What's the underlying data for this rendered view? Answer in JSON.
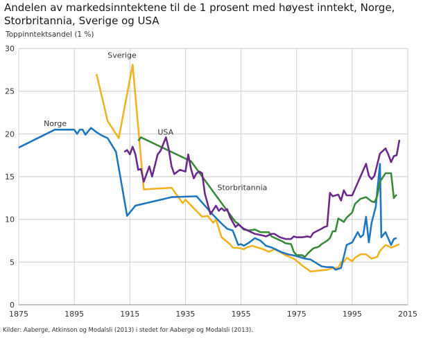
{
  "chart_data": {
    "type": "line",
    "title": "Andelen av markedsinntektene til de 1 prosent med høyest inntekt, Norge, Storbritannia, Sverige og USA",
    "ylabel": "Toppinntektsandel (1 %)",
    "xlabel": "",
    "xlim": [
      1875,
      2015
    ],
    "ylim": [
      0,
      30
    ],
    "xticks": [
      1875,
      1895,
      1915,
      1935,
      1955,
      1975,
      1995,
      2015
    ],
    "yticks": [
      0,
      5,
      10,
      15,
      20,
      25,
      30
    ],
    "grid": true,
    "source": "Kilder: Aaberge, Atkinson og Modalsli (2013) i stedet for Aaberge og Modalsli (2013).",
    "series": [
      {
        "name": "Norge",
        "color": "#1f77c0",
        "points": [
          [
            1875,
            18.4
          ],
          [
            1888,
            20.5
          ],
          [
            1893,
            20.5
          ],
          [
            1895,
            20.5
          ],
          [
            1896,
            20.0
          ],
          [
            1897,
            20.5
          ],
          [
            1898,
            20.5
          ],
          [
            1899,
            19.9
          ],
          [
            1901,
            20.7
          ],
          [
            1903,
            20.2
          ],
          [
            1905,
            19.8
          ],
          [
            1907,
            19.5
          ],
          [
            1910,
            17.9
          ],
          [
            1914,
            10.4
          ],
          [
            1917,
            11.6
          ],
          [
            1930,
            12.6
          ],
          [
            1939,
            12.7
          ],
          [
            1945,
            10.5
          ],
          [
            1948,
            9.5
          ],
          [
            1950,
            8.9
          ],
          [
            1952,
            8.7
          ],
          [
            1954,
            7.0
          ],
          [
            1955,
            7.1
          ],
          [
            1956,
            6.9
          ],
          [
            1958,
            7.3
          ],
          [
            1960,
            7.8
          ],
          [
            1962,
            7.5
          ],
          [
            1964,
            6.9
          ],
          [
            1966,
            6.7
          ],
          [
            1968,
            6.4
          ],
          [
            1970,
            6.1
          ],
          [
            1972,
            5.9
          ],
          [
            1975,
            5.7
          ],
          [
            1978,
            5.4
          ],
          [
            1980,
            5.3
          ],
          [
            1982,
            4.9
          ],
          [
            1984,
            4.5
          ],
          [
            1986,
            4.4
          ],
          [
            1988,
            4.4
          ],
          [
            1989,
            4.1
          ],
          [
            1991,
            4.3
          ],
          [
            1993,
            7.0
          ],
          [
            1995,
            7.3
          ],
          [
            1997,
            8.5
          ],
          [
            1998,
            7.9
          ],
          [
            1999,
            8.2
          ],
          [
            2000,
            10.3
          ],
          [
            2001,
            7.3
          ],
          [
            2002,
            9.6
          ],
          [
            2003.5,
            11.5
          ],
          [
            2005,
            16.5
          ],
          [
            2005.5,
            7.9
          ],
          [
            2007,
            8.5
          ],
          [
            2009,
            7.0
          ],
          [
            2010,
            7.7
          ],
          [
            2011,
            7.8
          ]
        ]
      },
      {
        "name": "Sverige",
        "color": "#f0b323",
        "points": [
          [
            1903,
            27.0
          ],
          [
            1907,
            21.5
          ],
          [
            1911,
            19.5
          ],
          [
            1916,
            28.1
          ],
          [
            1920,
            13.5
          ],
          [
            1930,
            13.7
          ],
          [
            1934,
            11.9
          ],
          [
            1935,
            12.3
          ],
          [
            1941,
            10.3
          ],
          [
            1943,
            10.4
          ],
          [
            1945,
            9.6
          ],
          [
            1946,
            10.0
          ],
          [
            1948,
            7.9
          ],
          [
            1951,
            7.1
          ],
          [
            1952,
            6.7
          ],
          [
            1955,
            6.6
          ],
          [
            1956,
            6.5
          ],
          [
            1957,
            6.7
          ],
          [
            1959,
            6.9
          ],
          [
            1963,
            6.5
          ],
          [
            1965,
            6.2
          ],
          [
            1967,
            6.5
          ],
          [
            1969,
            6.2
          ],
          [
            1971,
            5.8
          ],
          [
            1974,
            5.4
          ],
          [
            1977,
            4.6
          ],
          [
            1980,
            3.9
          ],
          [
            1983,
            4.0
          ],
          [
            1986,
            4.1
          ],
          [
            1988,
            4.3
          ],
          [
            1990,
            4.3
          ],
          [
            1991,
            5.0
          ],
          [
            1992,
            5.0
          ],
          [
            1993,
            5.5
          ],
          [
            1995,
            5.1
          ],
          [
            1996,
            5.5
          ],
          [
            1998,
            5.9
          ],
          [
            2000,
            5.9
          ],
          [
            2002,
            5.4
          ],
          [
            2004,
            5.6
          ],
          [
            2005,
            6.3
          ],
          [
            2007,
            7.0
          ],
          [
            2009,
            6.7
          ],
          [
            2010,
            6.8
          ],
          [
            2012,
            7.1
          ]
        ]
      },
      {
        "name": "USA",
        "color": "#6a2a8c",
        "points": [
          [
            1913,
            17.9
          ],
          [
            1914,
            18.1
          ],
          [
            1915,
            17.6
          ],
          [
            1916,
            18.5
          ],
          [
            1917,
            17.6
          ],
          [
            1918,
            15.8
          ],
          [
            1919,
            15.9
          ],
          [
            1920,
            14.4
          ],
          [
            1922,
            16.2
          ],
          [
            1923,
            15.0
          ],
          [
            1925,
            17.6
          ],
          [
            1926,
            18.0
          ],
          [
            1928,
            19.6
          ],
          [
            1929,
            18.2
          ],
          [
            1930,
            16.2
          ],
          [
            1931,
            15.3
          ],
          [
            1933,
            15.8
          ],
          [
            1935,
            15.6
          ],
          [
            1936,
            17.6
          ],
          [
            1937,
            15.9
          ],
          [
            1938,
            14.8
          ],
          [
            1939,
            15.4
          ],
          [
            1940,
            15.6
          ],
          [
            1941,
            15.4
          ],
          [
            1942,
            13.0
          ],
          [
            1944,
            10.6
          ],
          [
            1946,
            11.6
          ],
          [
            1947,
            11.0
          ],
          [
            1948,
            11.3
          ],
          [
            1949,
            11.0
          ],
          [
            1950,
            11.2
          ],
          [
            1951,
            10.3
          ],
          [
            1953,
            9.1
          ],
          [
            1954,
            9.4
          ],
          [
            1956,
            8.9
          ],
          [
            1958,
            8.6
          ],
          [
            1960,
            8.3
          ],
          [
            1963,
            8.1
          ],
          [
            1964,
            8.0
          ],
          [
            1966,
            8.3
          ],
          [
            1967,
            8.3
          ],
          [
            1969,
            7.9
          ],
          [
            1971,
            7.7
          ],
          [
            1973,
            7.7
          ],
          [
            1974,
            8.0
          ],
          [
            1975,
            7.9
          ],
          [
            1977,
            7.9
          ],
          [
            1979,
            8.0
          ],
          [
            1980,
            7.9
          ],
          [
            1981,
            8.4
          ],
          [
            1984,
            8.9
          ],
          [
            1985,
            9.1
          ],
          [
            1986,
            9.2
          ],
          [
            1987,
            13.1
          ],
          [
            1988,
            12.7
          ],
          [
            1990,
            12.9
          ],
          [
            1991,
            12.2
          ],
          [
            1992,
            13.4
          ],
          [
            1993,
            12.8
          ],
          [
            1995,
            12.8
          ],
          [
            2000,
            16.5
          ],
          [
            2001,
            15.1
          ],
          [
            2002,
            14.7
          ],
          [
            2003,
            15.1
          ],
          [
            2005,
            17.7
          ],
          [
            2007,
            18.3
          ],
          [
            2008,
            17.6
          ],
          [
            2009,
            16.7
          ],
          [
            2010,
            17.4
          ],
          [
            2011,
            17.5
          ],
          [
            2012,
            19.3
          ]
        ]
      },
      {
        "name": "Storbritannia",
        "color": "#3a8a3a",
        "points": [
          [
            1918,
            19.2
          ],
          [
            1919,
            19.6
          ],
          [
            1937,
            16.8
          ],
          [
            1948,
            11.9
          ],
          [
            1953,
            9.7
          ],
          [
            1954,
            9.5
          ],
          [
            1956,
            8.8
          ],
          [
            1958,
            8.7
          ],
          [
            1960,
            8.8
          ],
          [
            1962,
            8.5
          ],
          [
            1965,
            8.5
          ],
          [
            1966,
            8.0
          ],
          [
            1968,
            7.7
          ],
          [
            1970,
            7.4
          ],
          [
            1971,
            7.2
          ],
          [
            1973,
            7.1
          ],
          [
            1974,
            6.2
          ],
          [
            1975,
            5.8
          ],
          [
            1977,
            5.8
          ],
          [
            1978,
            5.6
          ],
          [
            1979,
            6.0
          ],
          [
            1981,
            6.6
          ],
          [
            1983,
            6.8
          ],
          [
            1984,
            7.1
          ],
          [
            1986,
            7.5
          ],
          [
            1987,
            7.8
          ],
          [
            1988,
            8.6
          ],
          [
            1989,
            8.6
          ],
          [
            1990,
            10.1
          ],
          [
            1992,
            9.7
          ],
          [
            1993,
            10.2
          ],
          [
            1995,
            10.8
          ],
          [
            1996,
            11.8
          ],
          [
            1998,
            12.4
          ],
          [
            1999,
            12.5
          ],
          [
            2000,
            12.6
          ],
          [
            2002,
            12.1
          ],
          [
            2003,
            12.0
          ],
          [
            2004,
            12.7
          ],
          [
            2005,
            14.4
          ],
          [
            2007,
            15.4
          ],
          [
            2009,
            15.4
          ],
          [
            2010,
            12.5
          ],
          [
            2011,
            12.9
          ]
        ]
      }
    ]
  }
}
